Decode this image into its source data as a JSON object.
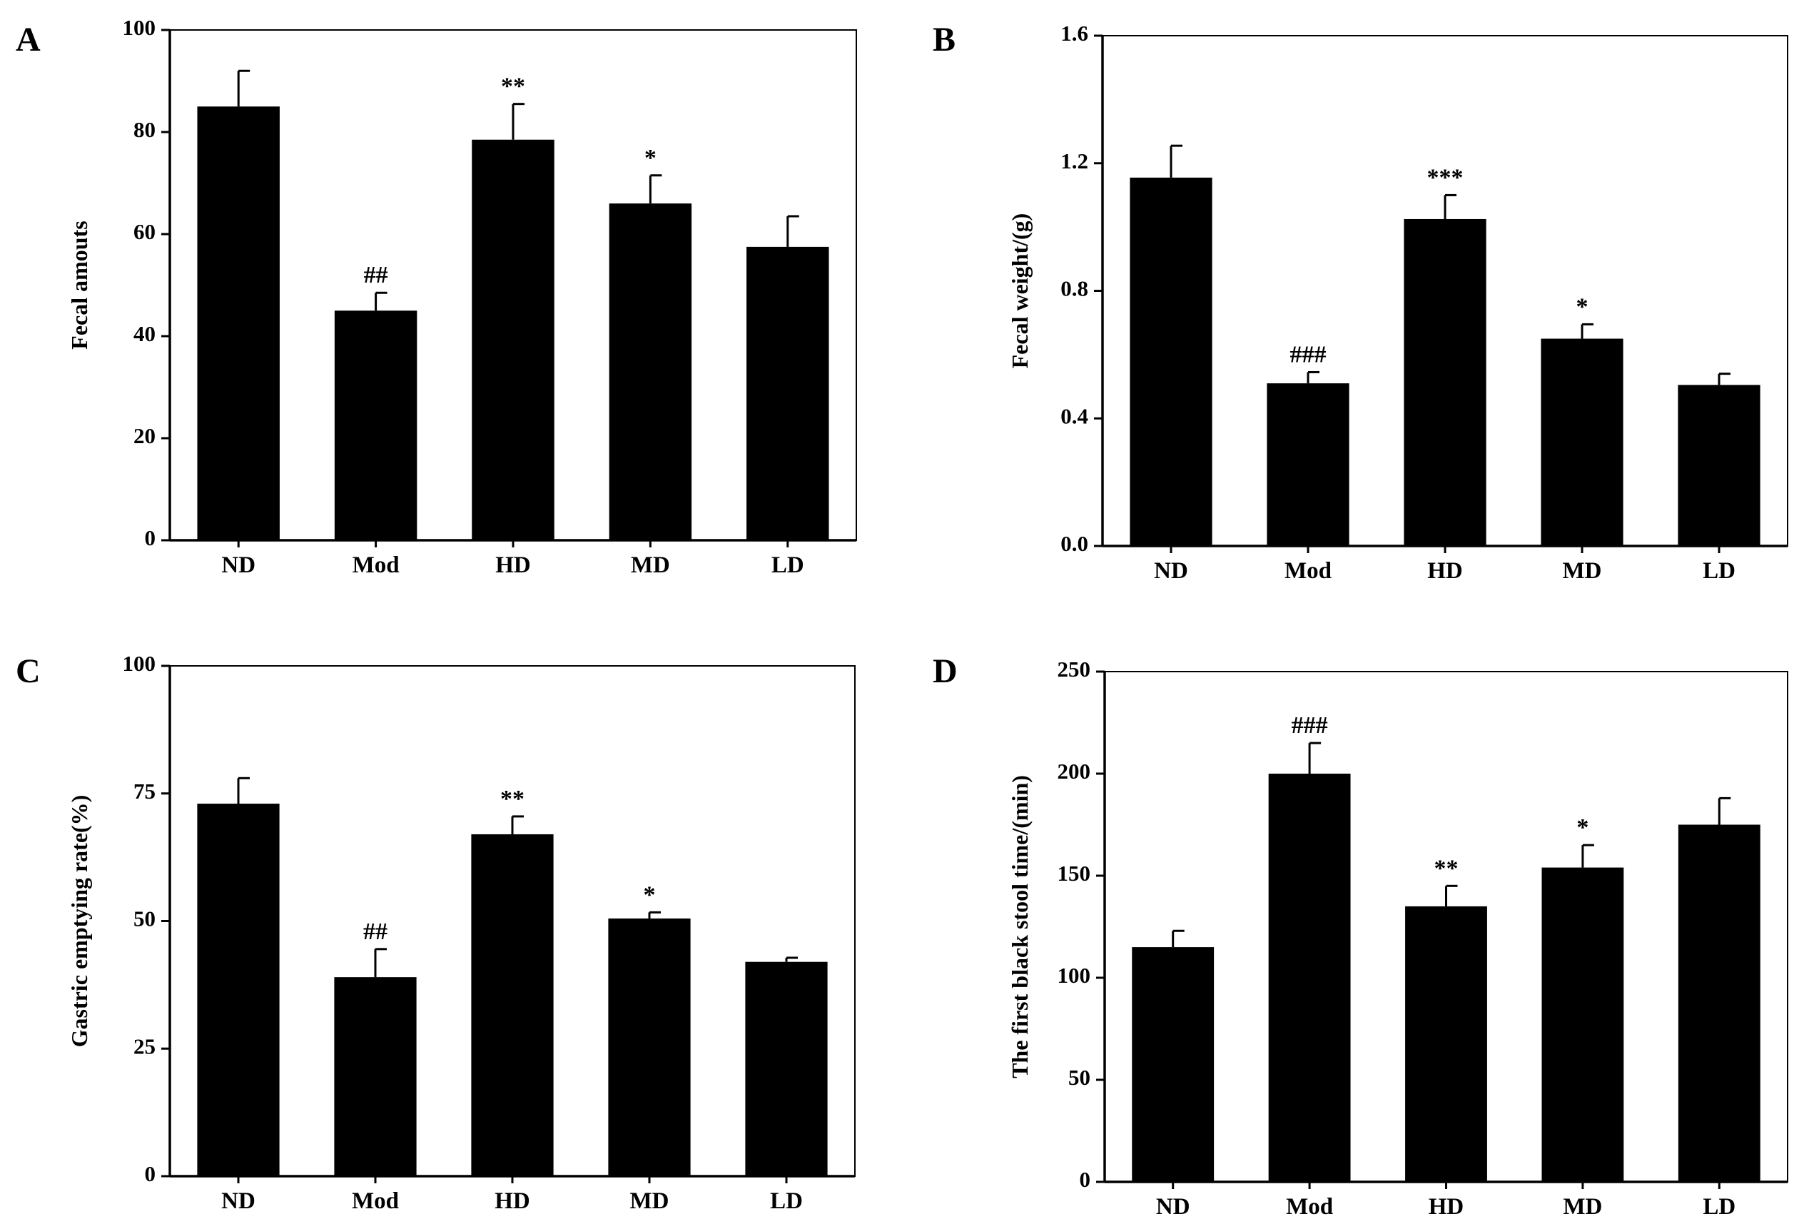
{
  "chart_data": [
    {
      "panel": "A",
      "type": "bar",
      "ylabel": "Fecal amouts",
      "categories": [
        "ND",
        "Mod",
        "HD",
        "MD",
        "LD"
      ],
      "values": [
        85,
        45,
        78.5,
        66,
        57.5
      ],
      "errors": [
        7,
        3.5,
        7,
        5.5,
        6
      ],
      "annotations": [
        "",
        "##",
        "**",
        "*",
        ""
      ],
      "ylim": [
        0,
        100
      ],
      "yticks": [
        0,
        20,
        40,
        60,
        80,
        100
      ],
      "ytick_labels": [
        "0",
        "20",
        "40",
        "60",
        "80",
        "100"
      ]
    },
    {
      "panel": "B",
      "type": "bar",
      "ylabel": "Fecal weight/(g)",
      "categories": [
        "ND",
        "Mod",
        "HD",
        "MD",
        "LD"
      ],
      "values": [
        1.155,
        0.51,
        1.025,
        0.65,
        0.505
      ],
      "errors": [
        0.1,
        0.035,
        0.075,
        0.045,
        0.035
      ],
      "annotations": [
        "",
        "###",
        "***",
        "*",
        ""
      ],
      "ylim": [
        0,
        1.6
      ],
      "yticks": [
        0,
        0.4,
        0.8,
        1.2,
        1.6
      ],
      "ytick_labels": [
        "0.0",
        "0.4",
        "0.8",
        "1.2",
        "1.6"
      ]
    },
    {
      "panel": "C",
      "type": "bar",
      "ylabel": "Gastric emptying rate(%)",
      "categories": [
        "ND",
        "Mod",
        "HD",
        "MD",
        "LD"
      ],
      "values": [
        73,
        39,
        67,
        50.5,
        42
      ],
      "errors": [
        5,
        5.5,
        3.5,
        1.2,
        0.8
      ],
      "annotations": [
        "",
        "##",
        "**",
        "*",
        ""
      ],
      "ylim": [
        0,
        100
      ],
      "yticks": [
        0,
        25,
        50,
        75,
        100
      ],
      "ytick_labels": [
        "0",
        "25",
        "50",
        "75",
        "100"
      ]
    },
    {
      "panel": "D",
      "type": "bar",
      "ylabel": "The first black stool time/(min)",
      "categories": [
        "ND",
        "Mod",
        "HD",
        "MD",
        "LD"
      ],
      "values": [
        115,
        200,
        135,
        154,
        175
      ],
      "errors": [
        8,
        15,
        10,
        11,
        13
      ],
      "annotations": [
        "",
        "###",
        "**",
        "*",
        ""
      ],
      "ylim": [
        0,
        250
      ],
      "yticks": [
        0,
        50,
        100,
        150,
        200,
        250
      ],
      "ytick_labels": [
        "0",
        "50",
        "100",
        "150",
        "200",
        "250"
      ]
    }
  ]
}
